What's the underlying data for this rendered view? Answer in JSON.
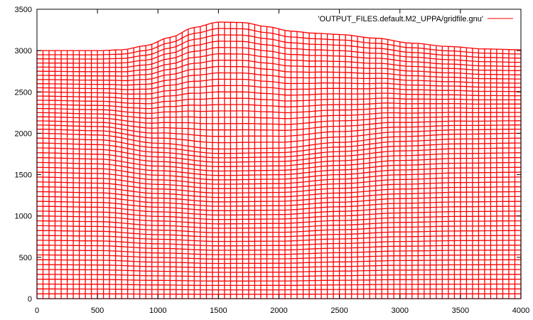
{
  "chart_data": {
    "type": "line",
    "title": "",
    "xlabel": "",
    "ylabel": "",
    "xlim": [
      0,
      4000
    ],
    "ylim": [
      0,
      3500
    ],
    "grid": false,
    "legend_position": "top-right",
    "x_ticks": [
      0,
      500,
      1000,
      1500,
      2000,
      2500,
      3000,
      3500,
      4000
    ],
    "y_ticks": [
      0,
      500,
      1000,
      1500,
      2000,
      2500,
      3000,
      3500
    ],
    "series": [
      {
        "name": "'OUTPUT_FILES.default.M2_UPPA/gridfile.gnu'",
        "color": "#ff0000",
        "description": "Deformed spectral-element mesh grid lines",
        "grid_columns": 80,
        "grid_rows_upper": 20,
        "grid_rows_lower": 34,
        "topography_surface": {
          "x": [
            0,
            300,
            500,
            700,
            900,
            1100,
            1300,
            1500,
            1700,
            1900,
            2100,
            2300,
            2500,
            2800,
            3100,
            3400,
            3700,
            4000
          ],
          "y": [
            3000,
            3000,
            3000,
            3010,
            3060,
            3160,
            3280,
            3345,
            3340,
            3290,
            3235,
            3210,
            3195,
            3150,
            3090,
            3050,
            3020,
            3010
          ]
        },
        "interface_surface": {
          "x": [
            0,
            500,
            1000,
            1500,
            2000,
            2500,
            3000,
            3500,
            4000
          ],
          "y": [
            2000,
            1980,
            1880,
            1810,
            1820,
            1890,
            1960,
            1990,
            2000
          ]
        },
        "bottom": 0
      }
    ]
  },
  "legend": {
    "entry_label": "'OUTPUT_FILES.default.M2_UPPA/gridfile.gnu'",
    "line_color": "#ff0000"
  },
  "axes": {
    "frame_color": "#000000",
    "x_tick_labels": [
      "0",
      "500",
      "1000",
      "1500",
      "2000",
      "2500",
      "3000",
      "3500",
      "4000"
    ],
    "y_tick_labels": [
      "0",
      "500",
      "1000",
      "1500",
      "2000",
      "2500",
      "3000",
      "3500"
    ]
  }
}
